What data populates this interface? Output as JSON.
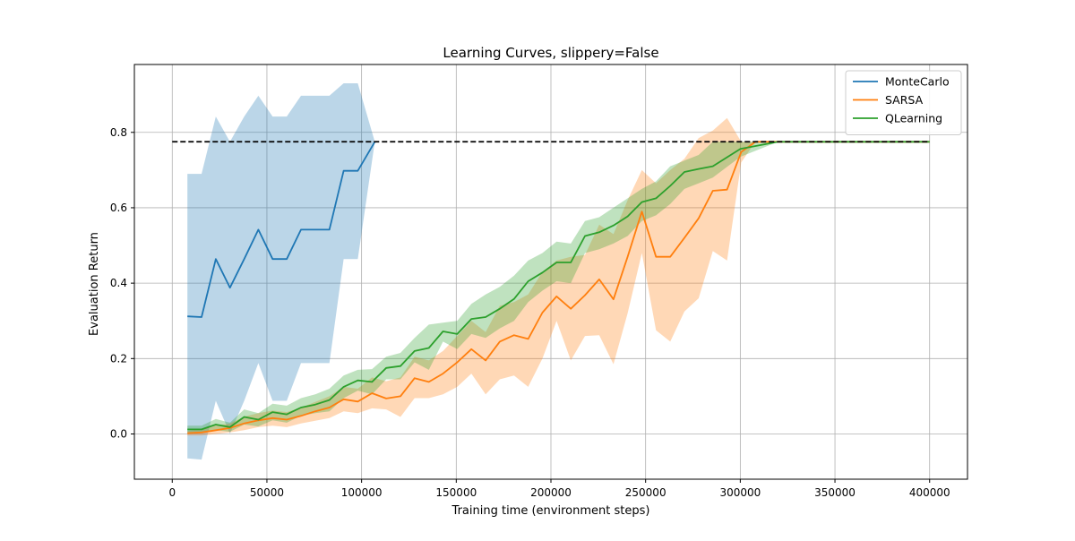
{
  "chart_data": {
    "type": "line",
    "title": "Learning Curves, slippery=False",
    "xlabel": "Training time (environment steps)",
    "ylabel": "Evaluation Return",
    "xlim": [
      -20000,
      420000
    ],
    "ylim": [
      -0.12,
      0.98
    ],
    "xticks": [
      0,
      50000,
      100000,
      150000,
      200000,
      250000,
      300000,
      350000,
      400000
    ],
    "xtick_labels": [
      "0",
      "50000",
      "100000",
      "150000",
      "200000",
      "250000",
      "300000",
      "350000",
      "400000"
    ],
    "yticks": [
      0.0,
      0.2,
      0.4,
      0.6,
      0.8
    ],
    "ytick_labels": [
      "0.0",
      "0.2",
      "0.4",
      "0.6",
      "0.8"
    ],
    "grid": true,
    "legend_position": "top-right",
    "reference_line": {
      "y": 0.775,
      "x_range": [
        0,
        400000
      ],
      "color": "#000000",
      "style": "dashed"
    },
    "series": [
      {
        "name": "MonteCarlo",
        "color": "#1f77b4",
        "x": [
          8000,
          15500,
          23000,
          30500,
          38000,
          45500,
          53000,
          60500,
          68000,
          75500,
          83000,
          90500,
          98000,
          107000
        ],
        "y": [
          0.312,
          0.31,
          0.464,
          0.388,
          0.464,
          0.542,
          0.464,
          0.464,
          0.542,
          0.542,
          0.542,
          0.698,
          0.698,
          0.775
        ],
        "upper": [
          0.69,
          0.69,
          0.842,
          0.775,
          0.842,
          0.897,
          0.842,
          0.842,
          0.897,
          0.897,
          0.897,
          0.93,
          0.93,
          0.775
        ],
        "lower": [
          -0.065,
          -0.068,
          0.088,
          0.001,
          0.088,
          0.188,
          0.088,
          0.088,
          0.188,
          0.188,
          0.188,
          0.464,
          0.464,
          0.775
        ]
      },
      {
        "name": "SARSA",
        "color": "#ff7f0e",
        "x": [
          8000,
          15500,
          23000,
          30500,
          38000,
          45500,
          53000,
          60500,
          68000,
          75500,
          83000,
          90500,
          98000,
          105500,
          113000,
          120500,
          128000,
          135500,
          143000,
          150500,
          158000,
          165500,
          173000,
          180500,
          188000,
          195500,
          203000,
          210500,
          218000,
          225500,
          233000,
          240500,
          248000,
          255500,
          263000,
          270500,
          278000,
          285500,
          293000,
          300500,
          308000,
          315500,
          323000,
          330500,
          336000,
          345000,
          360000,
          380000,
          400000
        ],
        "y": [
          0.002,
          0.004,
          0.01,
          0.016,
          0.028,
          0.036,
          0.042,
          0.038,
          0.048,
          0.06,
          0.07,
          0.092,
          0.086,
          0.108,
          0.094,
          0.1,
          0.148,
          0.138,
          0.16,
          0.19,
          0.225,
          0.195,
          0.245,
          0.262,
          0.252,
          0.322,
          0.365,
          0.332,
          0.368,
          0.41,
          0.357,
          0.47,
          0.59,
          0.47,
          0.47,
          0.52,
          0.572,
          0.645,
          0.648,
          0.748,
          0.775,
          0.775,
          0.775,
          0.775,
          0.775,
          0.775,
          0.775,
          0.775,
          0.775
        ],
        "upper": [
          0.008,
          0.012,
          0.022,
          0.028,
          0.046,
          0.055,
          0.062,
          0.058,
          0.07,
          0.085,
          0.1,
          0.125,
          0.12,
          0.15,
          0.14,
          0.15,
          0.205,
          0.195,
          0.22,
          0.26,
          0.3,
          0.27,
          0.34,
          0.35,
          0.37,
          0.43,
          0.46,
          0.47,
          0.475,
          0.555,
          0.53,
          0.62,
          0.7,
          0.665,
          0.7,
          0.73,
          0.785,
          0.805,
          0.838,
          0.775,
          0.775,
          0.775,
          0.775,
          0.775,
          0.775,
          0.775,
          0.775,
          0.775,
          0.775
        ],
        "lower": [
          -0.004,
          -0.004,
          0.0,
          0.004,
          0.01,
          0.018,
          0.022,
          0.018,
          0.028,
          0.035,
          0.042,
          0.06,
          0.055,
          0.068,
          0.065,
          0.045,
          0.095,
          0.095,
          0.105,
          0.125,
          0.16,
          0.105,
          0.145,
          0.155,
          0.125,
          0.2,
          0.3,
          0.195,
          0.26,
          0.262,
          0.185,
          0.32,
          0.48,
          0.275,
          0.245,
          0.325,
          0.36,
          0.485,
          0.46,
          0.72,
          0.775,
          0.775,
          0.775,
          0.775,
          0.775,
          0.775,
          0.775,
          0.775,
          0.775
        ]
      },
      {
        "name": "QLearning",
        "color": "#2ca02c",
        "x": [
          8000,
          15500,
          23000,
          30500,
          38000,
          45500,
          53000,
          60500,
          68000,
          75500,
          83000,
          90500,
          98000,
          105500,
          113000,
          120500,
          128000,
          135500,
          143000,
          150500,
          158000,
          165500,
          173000,
          180500,
          188000,
          195500,
          203000,
          210500,
          218000,
          225500,
          233000,
          240500,
          248000,
          255500,
          263000,
          270500,
          278000,
          285500,
          300000,
          320000,
          340000,
          360000,
          380000,
          400000
        ],
        "y": [
          0.012,
          0.012,
          0.025,
          0.018,
          0.045,
          0.038,
          0.058,
          0.052,
          0.07,
          0.078,
          0.09,
          0.125,
          0.142,
          0.138,
          0.175,
          0.18,
          0.22,
          0.228,
          0.272,
          0.265,
          0.305,
          0.31,
          0.332,
          0.358,
          0.405,
          0.428,
          0.455,
          0.455,
          0.525,
          0.535,
          0.553,
          0.577,
          0.615,
          0.625,
          0.658,
          0.695,
          0.703,
          0.71,
          0.756,
          0.775,
          0.775,
          0.775,
          0.775,
          0.775
        ],
        "upper": [
          0.022,
          0.022,
          0.04,
          0.03,
          0.065,
          0.055,
          0.08,
          0.075,
          0.095,
          0.105,
          0.12,
          0.155,
          0.17,
          0.172,
          0.205,
          0.215,
          0.255,
          0.29,
          0.295,
          0.3,
          0.345,
          0.37,
          0.39,
          0.42,
          0.46,
          0.48,
          0.51,
          0.505,
          0.565,
          0.575,
          0.6,
          0.625,
          0.65,
          0.67,
          0.71,
          0.725,
          0.74,
          0.775,
          0.775,
          0.775,
          0.775,
          0.775,
          0.775,
          0.775
        ],
        "lower": [
          0.004,
          0.004,
          0.01,
          0.006,
          0.025,
          0.02,
          0.036,
          0.03,
          0.048,
          0.055,
          0.06,
          0.095,
          0.115,
          0.105,
          0.145,
          0.145,
          0.19,
          0.17,
          0.245,
          0.225,
          0.265,
          0.255,
          0.28,
          0.3,
          0.35,
          0.38,
          0.405,
          0.4,
          0.48,
          0.49,
          0.505,
          0.525,
          0.565,
          0.58,
          0.61,
          0.65,
          0.665,
          0.68,
          0.735,
          0.775,
          0.775,
          0.775,
          0.775,
          0.775
        ]
      }
    ]
  }
}
